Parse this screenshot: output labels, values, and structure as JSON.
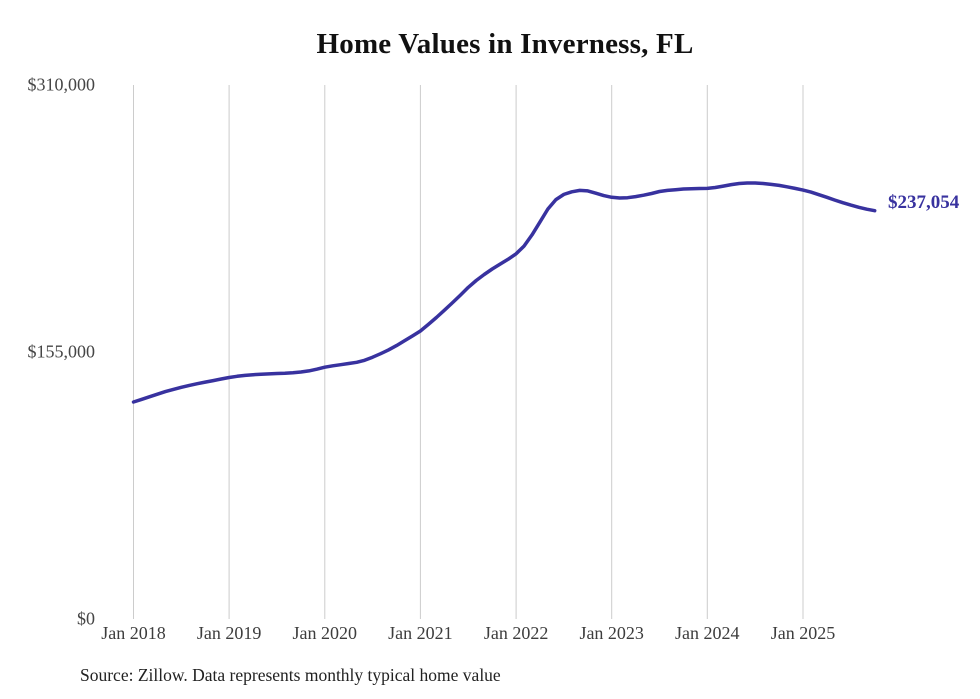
{
  "chart": {
    "title": "Home Values in Inverness, FL",
    "end_label": "$237,054",
    "source": "Source: Zillow. Data represents monthly typical home value",
    "colors": {
      "line": "#38329f",
      "grid": "#cccccc",
      "end_label": "#38329f",
      "tick_text": "#454545",
      "title_text": "#111111",
      "source_text": "#222222",
      "background": "#ffffff"
    }
  },
  "chart_data": {
    "type": "line",
    "title": "Home Values in Inverness, FL",
    "ylabel": "",
    "xlabel": "",
    "ylim": [
      0,
      310000
    ],
    "y_ticks": [
      0,
      155000,
      310000
    ],
    "y_tick_labels": [
      "$0",
      "$155,000",
      "$310,000"
    ],
    "x_tick_labels": [
      "Jan 2018",
      "Jan 2019",
      "Jan 2020",
      "Jan 2021",
      "Jan 2022",
      "Jan 2023",
      "Jan 2024",
      "Jan 2025"
    ],
    "grid": "vertical-only",
    "legend": "none",
    "annotation": {
      "label": "$237,054",
      "value": 237054,
      "position": "line-end"
    },
    "x": [
      "2018-01",
      "2018-02",
      "2018-03",
      "2018-04",
      "2018-05",
      "2018-06",
      "2018-07",
      "2018-08",
      "2018-09",
      "2018-10",
      "2018-11",
      "2018-12",
      "2019-01",
      "2019-02",
      "2019-03",
      "2019-04",
      "2019-05",
      "2019-06",
      "2019-07",
      "2019-08",
      "2019-09",
      "2019-10",
      "2019-11",
      "2019-12",
      "2020-01",
      "2020-02",
      "2020-03",
      "2020-04",
      "2020-05",
      "2020-06",
      "2020-07",
      "2020-08",
      "2020-09",
      "2020-10",
      "2020-11",
      "2020-12",
      "2021-01",
      "2021-02",
      "2021-03",
      "2021-04",
      "2021-05",
      "2021-06",
      "2021-07",
      "2021-08",
      "2021-09",
      "2021-10",
      "2021-11",
      "2021-12",
      "2022-01",
      "2022-02",
      "2022-03",
      "2022-04",
      "2022-05",
      "2022-06",
      "2022-07",
      "2022-08",
      "2022-09",
      "2022-10",
      "2022-11",
      "2022-12",
      "2023-01",
      "2023-02",
      "2023-03",
      "2023-04",
      "2023-05",
      "2023-06",
      "2023-07",
      "2023-08",
      "2023-09",
      "2023-10",
      "2023-11",
      "2023-12",
      "2024-01",
      "2024-02",
      "2024-03",
      "2024-04",
      "2024-05",
      "2024-06",
      "2024-07",
      "2024-08",
      "2024-09",
      "2024-10",
      "2024-11",
      "2024-12",
      "2025-01",
      "2025-02",
      "2025-03",
      "2025-04",
      "2025-05",
      "2025-06",
      "2025-07",
      "2025-08",
      "2025-09",
      "2025-10"
    ],
    "values": [
      126000,
      127500,
      129000,
      130500,
      132000,
      133300,
      134500,
      135600,
      136600,
      137500,
      138400,
      139300,
      140200,
      140900,
      141400,
      141800,
      142100,
      142300,
      142500,
      142700,
      143000,
      143400,
      144000,
      145000,
      146200,
      147000,
      147600,
      148300,
      149000,
      150200,
      152000,
      154000,
      156200,
      158700,
      161500,
      164300,
      167200,
      171000,
      175000,
      179200,
      183500,
      188000,
      192500,
      196500,
      200000,
      203200,
      206000,
      208800,
      212000,
      216500,
      223000,
      230500,
      238000,
      243500,
      246500,
      248000,
      248800,
      248500,
      247200,
      245800,
      244800,
      244400,
      244600,
      245200,
      246000,
      247000,
      248200,
      248800,
      249200,
      249600,
      249800,
      249900,
      250000,
      250500,
      251300,
      252200,
      252800,
      253100,
      253100,
      252800,
      252300,
      251700,
      250900,
      250000,
      249000,
      247800,
      246300,
      244800,
      243200,
      241700,
      240300,
      239000,
      237900,
      237054
    ]
  }
}
